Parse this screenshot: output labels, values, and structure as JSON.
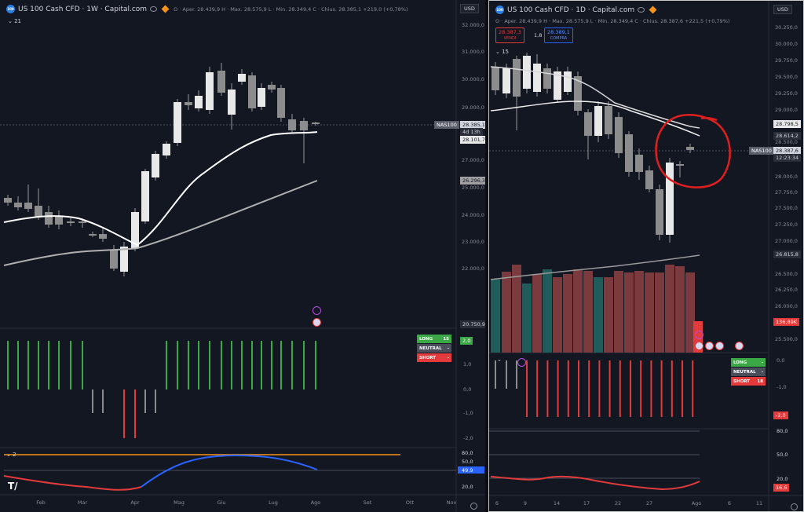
{
  "left": {
    "title": "US 100 Cash CFD · 1W · Capital.com",
    "ohlc": "O · Aper. 28.439,9 H · Max. 28.575,9 L · Min. 28.349,4 C · Chius. 28.385,1 +219,0 (+0,78%)",
    "currency": "USD",
    "indicator_count": "21",
    "price_scale": [
      "32.000,0",
      "31.000,0",
      "30.000,0",
      "29.000,0",
      "27.000,0",
      "25.000,0",
      "24.000,0",
      "23.000,0",
      "22.000,0"
    ],
    "labels": {
      "nas": "NAS100",
      "price": "28.385,1",
      "countdown": "4d 13h",
      "ma1": "28.101,7",
      "ma2": "26.296,3",
      "low": "20.750,9"
    },
    "sig_scale": [
      "2,0",
      "1,0",
      "0,0",
      "-1,0",
      "-2,0"
    ],
    "signal": {
      "long": "LONG",
      "long_count": "15",
      "neutral": "NEUTRAL",
      "neutral_count": "-",
      "short": "SHORT",
      "short_count": "-"
    },
    "rsi_count": "2",
    "rsi_scale": [
      "80,0",
      "50,0",
      "49,9",
      "20,0"
    ],
    "x_axis": [
      "Feb",
      "Mar",
      "Apr",
      "Mag",
      "Giu",
      "Lug",
      "Ago",
      "Set",
      "Ott",
      "Nov"
    ]
  },
  "right": {
    "title": "US 100 Cash CFD · 1D · Capital.com",
    "ohlc": "O · Aper. 28.439,9 H · Max. 28.575,9 L · Min. 28.349,4 C · Chius. 28.387,6 +221,5 (+0,79%)",
    "currency": "USD",
    "sell_price": "28.387,3",
    "sell_label": "VENDI",
    "spread": "1,8",
    "buy_price": "28.389,1",
    "buy_label": "COMPRA",
    "indicator_count": "15",
    "price_scale": [
      "30.250,0",
      "30.000,0",
      "29.750,0",
      "29.500,0",
      "29.250,0",
      "29.000,0",
      "28.500,0",
      "28.000,0",
      "27.750,0",
      "27.500,0",
      "27.250,0",
      "27.000,0",
      "26.500,0",
      "26.250,0",
      "26.000,0",
      "25.750,0",
      "25.500,0"
    ],
    "labels": {
      "ma1": "28.798,5",
      "ma2": "28.614,2",
      "nas": "NAS100",
      "price": "28.387,6",
      "countdown": "12:23:34",
      "ma3": "26.815,8",
      "vol": "136,89K"
    },
    "sig_scale": [
      "0,0",
      "-1,0",
      "-2,0"
    ],
    "signal": {
      "long": "LONG",
      "long_count": "-",
      "neutral": "NEUTRAL",
      "neutral_count": "-",
      "short": "SHORT",
      "short_count": "18"
    },
    "rsi_scale": [
      "80,0",
      "50,0",
      "20,0",
      "16,6"
    ],
    "x_axis": [
      "6",
      "9",
      "14",
      "17",
      "22",
      "27",
      "Ago",
      "6",
      "11"
    ]
  },
  "colors": {
    "bg": "#131722",
    "bull": "#e8e8e8",
    "bear": "#8c8c8c",
    "long": "#3aa845",
    "short": "#e33b3b",
    "annotation": "#e01f1f"
  }
}
